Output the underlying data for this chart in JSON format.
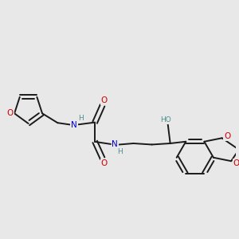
{
  "background_color": "#e8e8e8",
  "bond_color": "#1a1a1a",
  "oxygen_color": "#cc0000",
  "nitrogen_color": "#0000cc",
  "teal_color": "#4a9090",
  "figsize": [
    3.0,
    3.0
  ],
  "dpi": 100,
  "xlim": [
    0,
    10
  ],
  "ylim": [
    0,
    10
  ]
}
